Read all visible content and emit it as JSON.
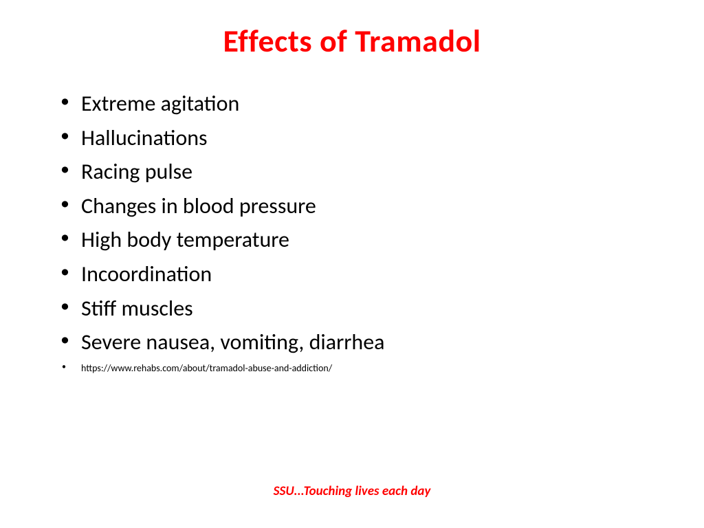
{
  "slide": {
    "title": "Effects of Tramadol",
    "title_color": "#ff0000",
    "bullets": [
      "Extreme agitation",
      "Hallucinations",
      "Racing pulse",
      "Changes in blood pressure",
      "High body temperature",
      "Incoordination",
      "Stiff muscles",
      "Severe nausea, vomiting, diarrhea"
    ],
    "source": "https://www.rehabs.com/about/tramadol-abuse-and-addiction/",
    "footer": "SSU...Touching lives each day",
    "footer_color": "#ff0000",
    "body_color": "#000000",
    "background": "#ffffff",
    "title_fontsize": 46,
    "body_fontsize": 32,
    "source_fontsize": 14,
    "footer_fontsize": 19
  }
}
